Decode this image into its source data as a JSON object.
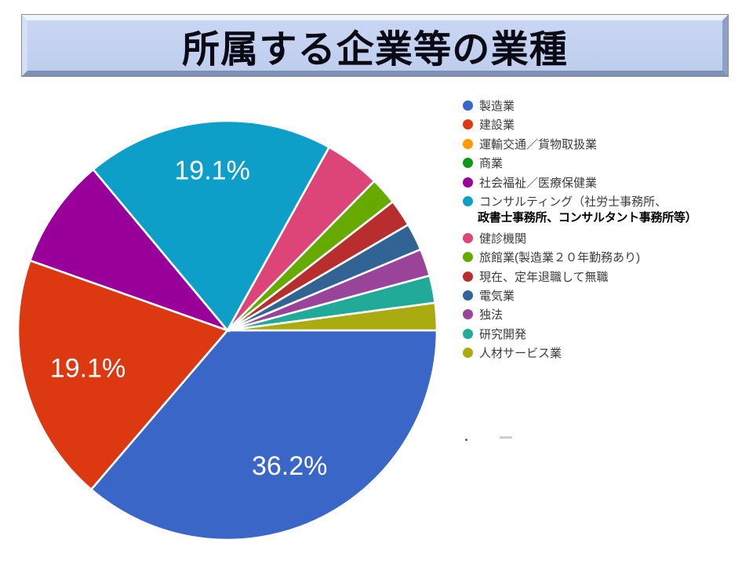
{
  "title": "所属する企業等の業種",
  "chart_data": {
    "type": "pie",
    "start_angle_deg_from_north": 90,
    "direction": "clockwise",
    "legend_position": "right",
    "slices": [
      {
        "label": "製造業",
        "color": "#3A66C8",
        "percent": 36.2,
        "data_label": "36.2%"
      },
      {
        "label": "建設業",
        "color": "#DC3912",
        "percent": 19.1,
        "data_label": "19.1%"
      },
      {
        "label": "運輸交通／貨物取扱業",
        "color": "#FF9900",
        "percent": 0,
        "data_label": ""
      },
      {
        "label": "商業",
        "color": "#109618",
        "percent": 0,
        "data_label": ""
      },
      {
        "label": "社会福祉／医療保健業",
        "color": "#990099",
        "percent": 8.5,
        "data_label": ""
      },
      {
        "label": "コンサルティング（社労士事務所、",
        "label_line2": "政書士事務所、コンサルタント事務所等）",
        "color": "#0E9FC8",
        "percent": 19.1,
        "data_label": "19.1%"
      },
      {
        "label": "健診機関",
        "color": "#DD4477",
        "percent": 4.3,
        "data_label": ""
      },
      {
        "label": "旅館業(製造業２０年勤務あり)",
        "color": "#66AA00",
        "percent": 2.1,
        "data_label": ""
      },
      {
        "label": "現在、定年退職して無職",
        "color": "#B82E2E",
        "percent": 2.1,
        "data_label": ""
      },
      {
        "label": "電気業",
        "color": "#316395",
        "percent": 2.1,
        "data_label": ""
      },
      {
        "label": "独法",
        "color": "#994499",
        "percent": 2.1,
        "data_label": ""
      },
      {
        "label": "研究開発",
        "color": "#22AA99",
        "percent": 2.1,
        "data_label": ""
      },
      {
        "label": "人材サービス業",
        "color": "#AAAA11",
        "percent": 2.1,
        "data_label": ""
      }
    ],
    "data_label_color": "#ffffff"
  },
  "stray_marks": {
    "dot": "·",
    "dash": "—"
  }
}
